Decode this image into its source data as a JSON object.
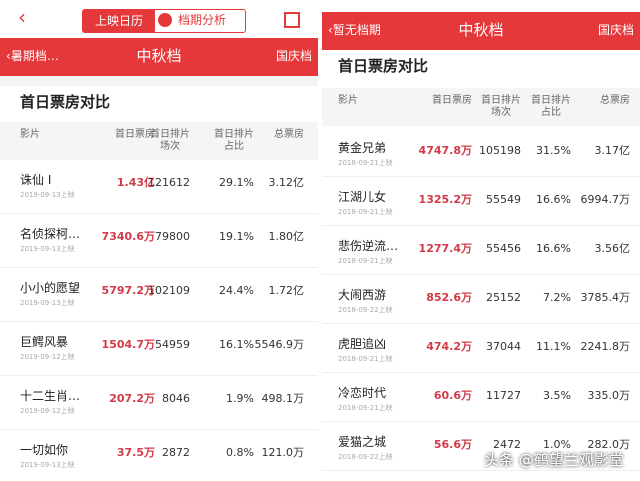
{
  "left": {
    "header": {
      "tabs": [
        "上映日历",
        "档期分析"
      ]
    },
    "nav": {
      "prev": "暑期档…",
      "title": "中秋档",
      "next": "国庆档"
    },
    "section_title": "首日票房对比",
    "columns": [
      "影片",
      "首日票房",
      "首日排片\n场次",
      "首日排片\n占比",
      "总票房"
    ],
    "rows": [
      [
        "诛仙 Ⅰ",
        "2019-09-13上映",
        "1.43亿",
        "121612",
        "29.1%",
        "3.12亿"
      ],
      [
        "名侦探柯…",
        "2019-09-13上映",
        "7340.6万",
        "79800",
        "19.1%",
        "1.80亿"
      ],
      [
        "小小的愿望",
        "2019-09-13上映",
        "5797.2万",
        "102109",
        "24.4%",
        "1.72亿"
      ],
      [
        "巨鳄风暴",
        "2019-09-12上映",
        "1504.7万",
        "54959",
        "16.1%",
        "5546.9万"
      ],
      [
        "十二生肖…",
        "2019-09-12上映",
        "207.2万",
        "8046",
        "1.9%",
        "498.1万"
      ],
      [
        "一切如你",
        "2019-09-13上映",
        "37.5万",
        "2872",
        "0.8%",
        "121.0万"
      ]
    ]
  },
  "right": {
    "nav": {
      "prev": "暂无档期",
      "title": "中秋档",
      "next": "国庆档"
    },
    "section_title": "首日票房对比",
    "columns": [
      "影片",
      "首日票房",
      "首日排片\n场次",
      "首日排片\n占比",
      "总票房"
    ],
    "rows": [
      [
        "黄金兄弟",
        "2018-09-21上映",
        "4747.8万",
        "105198",
        "31.5%",
        "3.17亿"
      ],
      [
        "江湖儿女",
        "2018-09-21上映",
        "1325.2万",
        "55549",
        "16.6%",
        "6994.7万"
      ],
      [
        "悲伤逆流…",
        "2018-09-21上映",
        "1277.4万",
        "55456",
        "16.6%",
        "3.56亿"
      ],
      [
        "大闹西游",
        "2018-09-22上映",
        "852.6万",
        "25152",
        "7.2%",
        "3785.4万"
      ],
      [
        "虎胆追凶",
        "2018-09-21上映",
        "474.2万",
        "37044",
        "11.1%",
        "2241.8万"
      ],
      [
        "冷恋时代",
        "2018-09-21上映",
        "60.6万",
        "11727",
        "3.5%",
        "335.0万"
      ],
      [
        "爱猫之城",
        "2018-09-22上映",
        "56.6万",
        "2472",
        "1.0%",
        "282.0万"
      ]
    ]
  },
  "watermark": "头条 @鹤望兰观影堂"
}
